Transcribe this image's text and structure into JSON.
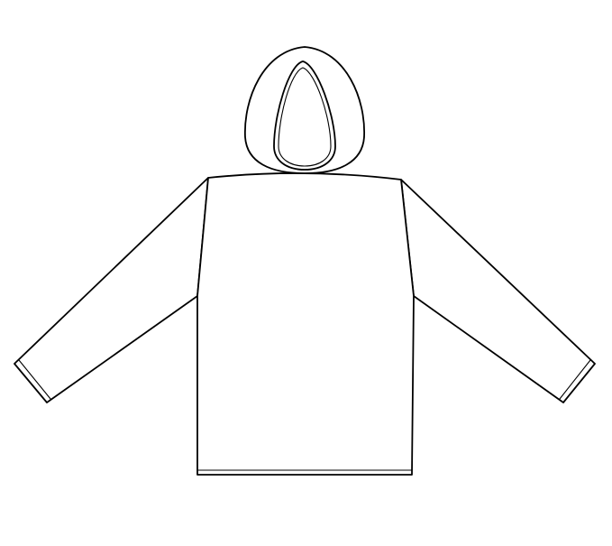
{
  "figure": {
    "subject": "hoodie-back-flat-sketch",
    "line_color": "#000000",
    "fill_color": "#ffffff",
    "background": "#ffffff"
  }
}
